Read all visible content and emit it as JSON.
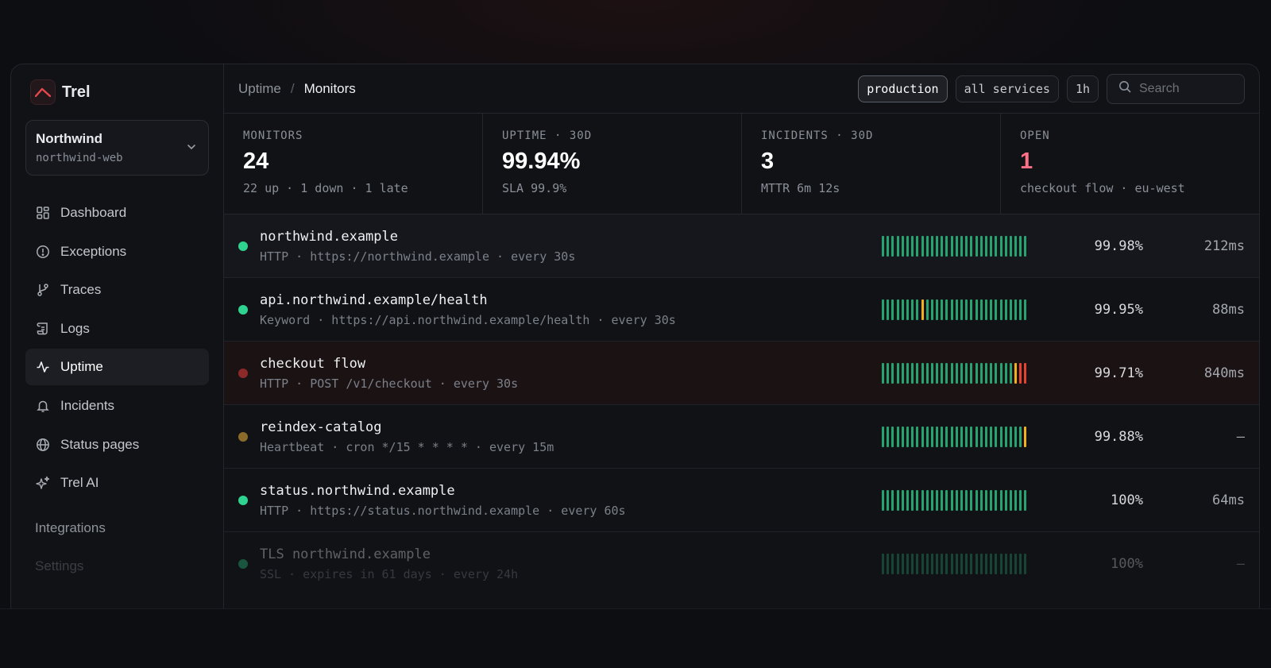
{
  "app": {
    "name": "Trel",
    "accent": "#e5484d"
  },
  "org": {
    "name": "Northwind",
    "project": "northwind-web"
  },
  "nav": [
    {
      "label": "Dashboard",
      "icon": "dashboard-icon"
    },
    {
      "label": "Exceptions",
      "icon": "alert-circle-icon"
    },
    {
      "label": "Traces",
      "icon": "git-branch-icon"
    },
    {
      "label": "Logs",
      "icon": "scroll-icon"
    },
    {
      "label": "Uptime",
      "icon": "activity-icon",
      "active": true
    },
    {
      "label": "Incidents",
      "icon": "bell-icon"
    },
    {
      "label": "Status pages",
      "icon": "globe-icon"
    },
    {
      "label": "Trel AI",
      "icon": "sparkles-icon"
    }
  ],
  "nav_secondary": {
    "integrations": "Integrations",
    "settings": "Settings"
  },
  "breadcrumb": {
    "parent": "Uptime",
    "separator": "/",
    "current": "Monitors"
  },
  "filters": {
    "environment": "production",
    "services": "all services",
    "range": "1h"
  },
  "search": {
    "placeholder": "Search"
  },
  "stats": [
    {
      "label": "MONITORS",
      "value": "24",
      "sub": "22 up · 1 down · 1 late"
    },
    {
      "label": "UPTIME · 30D",
      "value": "99.94%",
      "sub": "SLA 99.9%"
    },
    {
      "label": "INCIDENTS · 30D",
      "value": "3",
      "sub": "MTTR 6m 12s"
    },
    {
      "label": "OPEN",
      "value": "1",
      "sub": "checkout flow · eu-west"
    }
  ],
  "colors": {
    "up": "#2fd38f",
    "bar_up": "#27a36f",
    "late": "#f2b01e",
    "down": "#e5432f",
    "down_dot": "#8c2a2a",
    "late_dot": "#8a6b2a",
    "stat_alert": "#ff6f86"
  },
  "monitors": [
    {
      "name": "northwind.example",
      "meta": "HTTP · https://northwind.example · every 30s",
      "uptime": "99.98%",
      "latency": "212ms",
      "status": "up",
      "history": [
        "up",
        "up",
        "up",
        "up",
        "up",
        "up",
        "up",
        "up",
        "up",
        "up",
        "up",
        "up",
        "up",
        "up",
        "up",
        "up",
        "up",
        "up",
        "up",
        "up",
        "up",
        "up",
        "up",
        "up",
        "up",
        "up",
        "up",
        "up",
        "up",
        "up"
      ]
    },
    {
      "name": "api.northwind.example/health",
      "meta": "Keyword · https://api.northwind.example/health · every 30s",
      "uptime": "99.95%",
      "latency": "88ms",
      "status": "up",
      "history": [
        "up",
        "up",
        "up",
        "up",
        "up",
        "up",
        "up",
        "up",
        "late",
        "up",
        "up",
        "up",
        "up",
        "up",
        "up",
        "up",
        "up",
        "up",
        "up",
        "up",
        "up",
        "up",
        "up",
        "up",
        "up",
        "up",
        "up",
        "up",
        "up",
        "up"
      ]
    },
    {
      "name": "checkout flow",
      "meta": "HTTP · POST /v1/checkout · every 30s",
      "uptime": "99.71%",
      "latency": "840ms",
      "status": "down",
      "history": [
        "up",
        "up",
        "up",
        "up",
        "up",
        "up",
        "up",
        "up",
        "up",
        "up",
        "up",
        "up",
        "up",
        "up",
        "up",
        "up",
        "up",
        "up",
        "up",
        "up",
        "up",
        "up",
        "up",
        "up",
        "up",
        "up",
        "up",
        "late",
        "down",
        "down"
      ]
    },
    {
      "name": "reindex-catalog",
      "meta": "Heartbeat · cron */15 * * * * · every 15m",
      "uptime": "99.88%",
      "latency": "–",
      "status": "late",
      "history": [
        "up",
        "up",
        "up",
        "up",
        "up",
        "up",
        "up",
        "up",
        "up",
        "up",
        "up",
        "up",
        "up",
        "up",
        "up",
        "up",
        "up",
        "up",
        "up",
        "up",
        "up",
        "up",
        "up",
        "up",
        "up",
        "up",
        "up",
        "up",
        "up",
        "late"
      ]
    },
    {
      "name": "status.northwind.example",
      "meta": "HTTP · https://status.northwind.example · every 60s",
      "uptime": "100%",
      "latency": "64ms",
      "status": "up",
      "history": [
        "up",
        "up",
        "up",
        "up",
        "up",
        "up",
        "up",
        "up",
        "up",
        "up",
        "up",
        "up",
        "up",
        "up",
        "up",
        "up",
        "up",
        "up",
        "up",
        "up",
        "up",
        "up",
        "up",
        "up",
        "up",
        "up",
        "up",
        "up",
        "up",
        "up"
      ]
    },
    {
      "name": "TLS northwind.example",
      "meta": "SSL · expires in 61 days · every 24h",
      "uptime": "100%",
      "latency": "–",
      "status": "up",
      "history": [
        "up",
        "up",
        "up",
        "up",
        "up",
        "up",
        "up",
        "up",
        "up",
        "up",
        "up",
        "up",
        "up",
        "up",
        "up",
        "up",
        "up",
        "up",
        "up",
        "up",
        "up",
        "up",
        "up",
        "up",
        "up",
        "up",
        "up",
        "up",
        "up",
        "up"
      ]
    }
  ]
}
